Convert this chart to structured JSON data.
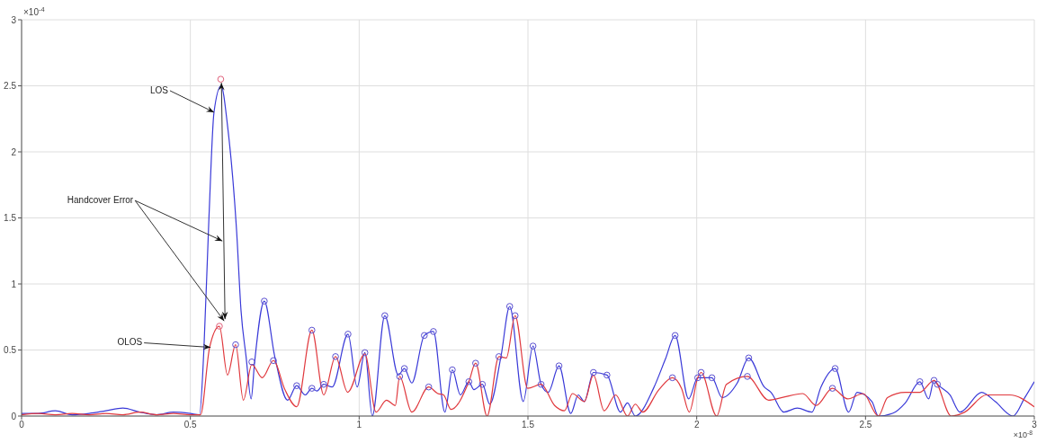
{
  "chart_data": {
    "type": "line",
    "xlabel": "×10$^{-8}$",
    "ylabel": "×10$^{-4}$",
    "xlim": [
      0,
      3
    ],
    "xticks": [
      0,
      0.5,
      1,
      1.5,
      2,
      2.5,
      3
    ],
    "ylim": [
      0,
      3
    ],
    "yticks": [
      0,
      0.5,
      1,
      1.5,
      2,
      2.5,
      3
    ],
    "grid": true,
    "legend": false,
    "annotations": [
      {
        "text": "LOS",
        "x": 0.57,
        "y": 2.3
      },
      {
        "text": "Handcover Error",
        "x": 0.6,
        "y": 0.72
      },
      {
        "text": "OLOS",
        "x": 0.56,
        "y": 0.52
      }
    ],
    "series": [
      {
        "color": "#3a3ad8",
        "marker": "none",
        "x": [
          0,
          0.05,
          0.1,
          0.15,
          0.2,
          0.25,
          0.3,
          0.35,
          0.4,
          0.45,
          0.5,
          0.527,
          0.54,
          0.555,
          0.57,
          0.591,
          0.61,
          0.637,
          0.65,
          0.665,
          0.68,
          0.69,
          0.719,
          0.75,
          0.788,
          0.815,
          0.84,
          0.86,
          0.875,
          0.895,
          0.92,
          0.967,
          0.994,
          1.017,
          1.039,
          1.076,
          1.116,
          1.134,
          1.156,
          1.193,
          1.22,
          1.254,
          1.276,
          1.3,
          1.325,
          1.34,
          1.365,
          1.387,
          1.42,
          1.446,
          1.486,
          1.515,
          1.539,
          1.56,
          1.592,
          1.627,
          1.649,
          1.667,
          1.694,
          1.734,
          1.774,
          1.795,
          1.818,
          1.872,
          1.907,
          1.936,
          1.976,
          2.003,
          2.045,
          2.075,
          2.12,
          2.154,
          2.2,
          2.22,
          2.258,
          2.298,
          2.341,
          2.368,
          2.41,
          2.45,
          2.475,
          2.519,
          2.538,
          2.58,
          2.618,
          2.661,
          2.687,
          2.703,
          2.713,
          2.75,
          2.78,
          2.844,
          2.884,
          2.937,
          2.972,
          3
        ],
        "values": [
          0.02,
          0.02,
          0.04,
          0.01,
          0.02,
          0.04,
          0.06,
          0.03,
          0.01,
          0.03,
          0.02,
          0.01,
          0.5,
          1.5,
          2.3,
          2.5,
          2.2,
          1.4,
          0.8,
          0.45,
          0.13,
          0.4,
          0.87,
          0.45,
          0.12,
          0.23,
          0.16,
          0.21,
          0.19,
          0.24,
          0.22,
          0.62,
          0.22,
          0.48,
          0,
          0.76,
          0.31,
          0.36,
          0.25,
          0.61,
          0.64,
          0.03,
          0.35,
          0.16,
          0.26,
          0.2,
          0.24,
          0.09,
          0.45,
          0.83,
          0.11,
          0.53,
          0.24,
          0.18,
          0.38,
          0.02,
          0.16,
          0.11,
          0.33,
          0.31,
          0.03,
          0.1,
          0,
          0.21,
          0.43,
          0.61,
          0.13,
          0.29,
          0.29,
          0.14,
          0.25,
          0.44,
          0.22,
          0.18,
          0.03,
          0.06,
          0.03,
          0.22,
          0.36,
          0.03,
          0.18,
          0.11,
          0,
          0.02,
          0.1,
          0.26,
          0.13,
          0.27,
          0.24,
          0.16,
          0.03,
          0.18,
          0.11,
          0,
          0.14,
          0.26
        ]
      },
      {
        "color": "#e0393e",
        "marker": "none",
        "x": [
          0,
          0.05,
          0.1,
          0.15,
          0.2,
          0.25,
          0.3,
          0.35,
          0.4,
          0.45,
          0.5,
          0.53,
          0.557,
          0.586,
          0.61,
          0.634,
          0.657,
          0.682,
          0.713,
          0.746,
          0.78,
          0.815,
          0.86,
          0.895,
          0.93,
          0.966,
          1.017,
          1.05,
          1.081,
          1.107,
          1.12,
          1.156,
          1.206,
          1.233,
          1.25,
          1.272,
          1.325,
          1.345,
          1.379,
          1.414,
          1.436,
          1.462,
          1.499,
          1.539,
          1.579,
          1.608,
          1.632,
          1.667,
          1.694,
          1.726,
          1.76,
          1.795,
          1.818,
          1.84,
          1.888,
          1.928,
          1.955,
          1.978,
          2.003,
          2.013,
          2.059,
          2.088,
          2.15,
          2.213,
          2.253,
          2.314,
          2.354,
          2.402,
          2.447,
          2.493,
          2.538,
          2.565,
          2.618,
          2.661,
          2.703,
          2.754,
          2.794,
          2.858,
          2.927,
          3
        ],
        "values": [
          0.01,
          0.02,
          0.01,
          0.02,
          0.01,
          0.02,
          0.01,
          0.03,
          0.01,
          0.02,
          0.01,
          0.01,
          0.52,
          0.68,
          0.31,
          0.54,
          0.12,
          0.39,
          0.29,
          0.42,
          0.2,
          0.07,
          0.65,
          0.16,
          0.45,
          0.18,
          0.47,
          0.03,
          0.12,
          0.08,
          0.3,
          0.03,
          0.22,
          0.17,
          0.16,
          0.05,
          0.26,
          0.4,
          0,
          0.45,
          0.44,
          0.76,
          0.21,
          0.24,
          0.08,
          0.04,
          0.17,
          0.11,
          0.31,
          0.04,
          0.16,
          0,
          0.09,
          0.03,
          0.2,
          0.29,
          0.21,
          0.03,
          0.29,
          0.33,
          0,
          0.24,
          0.3,
          0.12,
          0.14,
          0.17,
          0.08,
          0.21,
          0.13,
          0.17,
          0,
          0.14,
          0.18,
          0.18,
          0.27,
          0,
          0.03,
          0.16,
          0.16,
          0.07
        ]
      },
      {
        "type": "scatter",
        "color": "#5a50d0",
        "marker": "circle",
        "x": [
          0.634,
          0.682,
          0.719,
          0.746,
          0.815,
          0.86,
          0.86,
          0.895,
          0.93,
          0.967,
          1.017,
          1.076,
          1.12,
          1.134,
          1.193,
          1.206,
          1.22,
          1.276,
          1.325,
          1.345,
          1.365,
          1.414,
          1.446,
          1.462,
          1.515,
          1.539,
          1.592,
          1.694,
          1.734,
          1.928,
          1.936,
          2.003,
          2.013,
          2.045,
          2.15,
          2.154,
          2.402,
          2.41,
          2.661,
          2.703,
          2.713
        ],
        "values": [
          0.54,
          0.41,
          0.87,
          0.42,
          0.23,
          0.21,
          0.65,
          0.24,
          0.45,
          0.62,
          0.48,
          0.76,
          0.3,
          0.36,
          0.61,
          0.22,
          0.64,
          0.35,
          0.26,
          0.4,
          0.24,
          0.45,
          0.83,
          0.76,
          0.53,
          0.24,
          0.38,
          0.33,
          0.31,
          0.29,
          0.61,
          0.29,
          0.33,
          0.29,
          0.3,
          0.44,
          0.21,
          0.36,
          0.26,
          0.27,
          0.24
        ]
      },
      {
        "type": "scatter",
        "color": "#e0607a",
        "marker": "circle",
        "x": [
          0.586,
          0.59
        ],
        "values": [
          0.68,
          2.55
        ]
      }
    ]
  }
}
